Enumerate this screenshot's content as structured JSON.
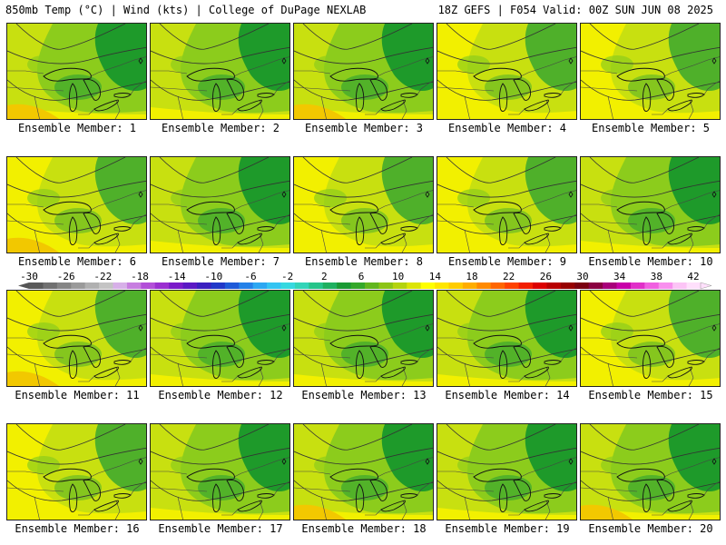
{
  "header": {
    "left": "850mb Temp (°C) | Wind (kts) | College of DuPage NEXLAB",
    "right": "18Z GEFS | F054 Valid: 00Z SUN JUN 08 2025"
  },
  "member_label_prefix": "Ensemble Member:",
  "members": [
    {
      "number": "1",
      "dominant": "green",
      "warm_sw": true
    },
    {
      "number": "2",
      "dominant": "green",
      "warm_sw": false
    },
    {
      "number": "3",
      "dominant": "green",
      "warm_sw": true
    },
    {
      "number": "4",
      "dominant": "yellow",
      "warm_sw": false
    },
    {
      "number": "5",
      "dominant": "yellow",
      "warm_sw": false
    },
    {
      "number": "6",
      "dominant": "yellow",
      "warm_sw": true
    },
    {
      "number": "7",
      "dominant": "green",
      "warm_sw": false
    },
    {
      "number": "8",
      "dominant": "yellow",
      "warm_sw": false
    },
    {
      "number": "9",
      "dominant": "yellow",
      "warm_sw": false
    },
    {
      "number": "10",
      "dominant": "green",
      "warm_sw": false
    },
    {
      "number": "11",
      "dominant": "yellow",
      "warm_sw": true
    },
    {
      "number": "12",
      "dominant": "green",
      "warm_sw": false
    },
    {
      "number": "13",
      "dominant": "green",
      "warm_sw": false
    },
    {
      "number": "14",
      "dominant": "green",
      "warm_sw": false
    },
    {
      "number": "15",
      "dominant": "yellow",
      "warm_sw": false
    },
    {
      "number": "16",
      "dominant": "yellow",
      "warm_sw": false
    },
    {
      "number": "17",
      "dominant": "green",
      "warm_sw": false
    },
    {
      "number": "18",
      "dominant": "green",
      "warm_sw": true
    },
    {
      "number": "19",
      "dominant": "green",
      "warm_sw": false
    },
    {
      "number": "20",
      "dominant": "green",
      "warm_sw": true
    }
  ],
  "colorbar": {
    "ticks": [
      "-30",
      "-26",
      "-22",
      "-18",
      "-14",
      "-10",
      "-6",
      "-2",
      "2",
      "6",
      "10",
      "14",
      "18",
      "22",
      "26",
      "30",
      "34",
      "38",
      "42"
    ],
    "colors": [
      "#5a5a5a",
      "#707070",
      "#858585",
      "#9a9a9a",
      "#b0b0b0",
      "#c4c4c4",
      "#d7b0e8",
      "#c77ee0",
      "#b24fd8",
      "#9a2fd0",
      "#7a1bc9",
      "#5a18c4",
      "#3a1fbf",
      "#2037c8",
      "#1e5ad8",
      "#2481e8",
      "#2ca7f2",
      "#34c4f2",
      "#36d8e0",
      "#32d4b8",
      "#26c48a",
      "#1fb060",
      "#1a9a34",
      "#34a82a",
      "#62b61e",
      "#8cc416",
      "#b4d30e",
      "#dce406",
      "#ffff00",
      "#ffe600",
      "#ffcc00",
      "#ffad00",
      "#ff8a00",
      "#ff6600",
      "#ff4200",
      "#f21e00",
      "#dc0000",
      "#b80000",
      "#960000",
      "#7a0010",
      "#8a0040",
      "#a8007a",
      "#c800a8",
      "#e030c8",
      "#f060e0",
      "#f890ee",
      "#fcc4f6",
      "#ffe0fc"
    ]
  },
  "palette": {
    "dark_green": "#1e9a2a",
    "green": "#4fb02a",
    "light_green": "#8ccc1c",
    "yellow_green": "#c8e010",
    "yellow": "#f2f000",
    "orange": "#f2c800"
  }
}
